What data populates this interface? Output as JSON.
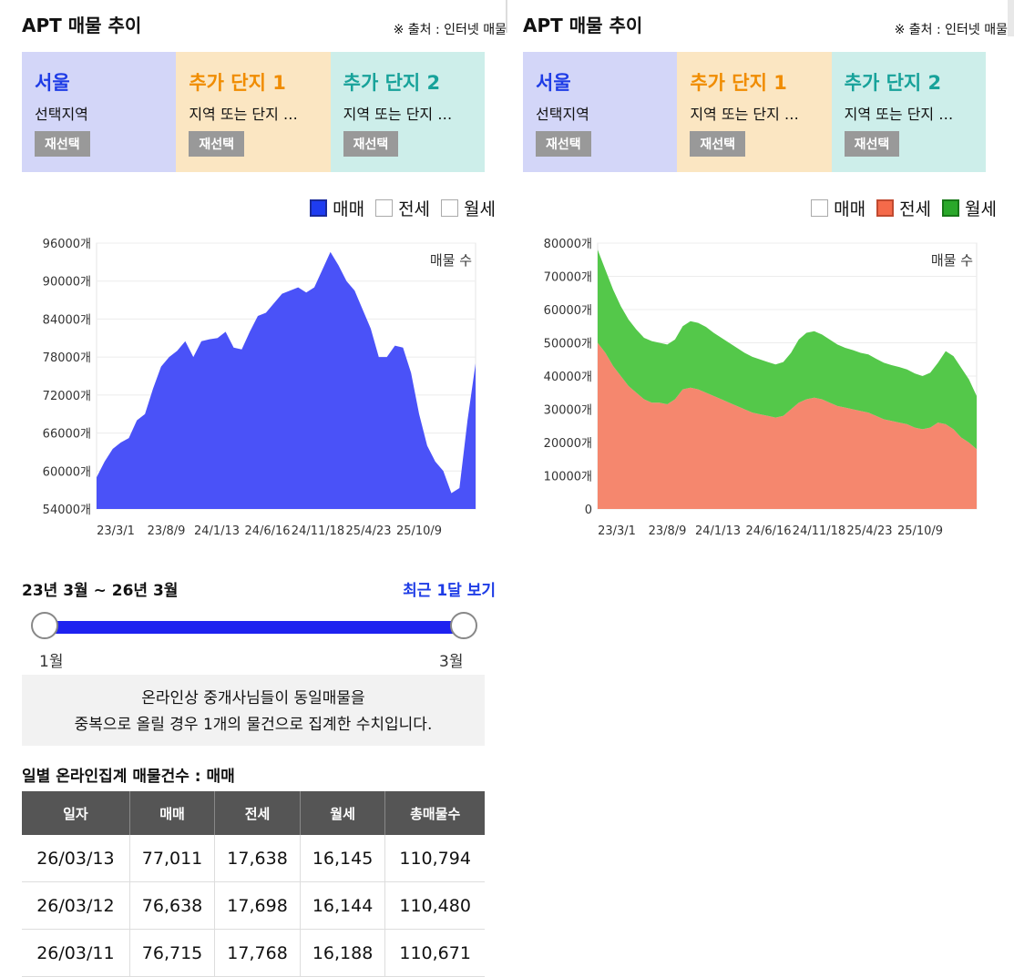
{
  "left": {
    "title": "APT 매물 추이",
    "source": "※ 출처 : 인터넷 매물",
    "regions": [
      {
        "name": "서울",
        "sub": "선택지역",
        "button": "재선택"
      },
      {
        "name": "추가 단지 1",
        "sub": "지역 또는 단지 …",
        "button": "재선택"
      },
      {
        "name": "추가 단지 2",
        "sub": "지역 또는 단지 …",
        "button": "재선택"
      }
    ],
    "legend": [
      {
        "label": "매매",
        "checked": true,
        "color": "#1e3cf0"
      },
      {
        "label": "전세",
        "checked": false,
        "color": "#ffffff"
      },
      {
        "label": "월세",
        "checked": false,
        "color": "#ffffff"
      }
    ]
  },
  "right": {
    "title": "APT 매물 추이",
    "source": "※ 출처 : 인터넷 매물",
    "regions": [
      {
        "name": "서울",
        "sub": "선택지역",
        "button": "재선택"
      },
      {
        "name": "추가 단지 1",
        "sub": "지역 또는 단지 …",
        "button": "재선택"
      },
      {
        "name": "추가 단지 2",
        "sub": "지역 또는 단지 …",
        "button": "재선택"
      }
    ],
    "legend": [
      {
        "label": "매매",
        "checked": false,
        "color": "#ffffff"
      },
      {
        "label": "전세",
        "checked": true,
        "color": "#f56a4a"
      },
      {
        "label": "월세",
        "checked": true,
        "color": "#2aa82a"
      }
    ]
  },
  "range": {
    "label": "23년 3월 ~ 26년 3월",
    "recent_link": "최근 1달 보기",
    "start_label": "1월",
    "end_label": "3월"
  },
  "note": {
    "line1": "온라인상 중개사님들이 동일매물을",
    "line2": "중복으로 올릴 경우 1개의 물건으로 집계한 수치입니다."
  },
  "table": {
    "title": "일별 온라인집계 매물건수 : 매매",
    "headers": [
      "일자",
      "매매",
      "전세",
      "월세",
      "총매물수"
    ],
    "rows": [
      [
        "26/03/13",
        "77,011",
        "17,638",
        "16,145",
        "110,794"
      ],
      [
        "26/03/12",
        "76,638",
        "17,698",
        "16,144",
        "110,480"
      ],
      [
        "26/03/11",
        "76,715",
        "17,768",
        "16,188",
        "110,671"
      ]
    ]
  },
  "chart_data": [
    {
      "type": "area",
      "title": "매물 수",
      "ylim": [
        54000,
        96000
      ],
      "ytick_values": [
        54000,
        60000,
        66000,
        72000,
        78000,
        84000,
        90000,
        96000
      ],
      "ytick_labels": [
        "54000개",
        "60000개",
        "66000개",
        "72000개",
        "78000개",
        "84000개",
        "90000개",
        "96000개"
      ],
      "xtick_labels": [
        "23/3/1",
        "23/8/9",
        "24/1/13",
        "24/6/16",
        "24/11/18",
        "25/4/23",
        "25/10/9"
      ],
      "grid": true,
      "series": [
        {
          "name": "매매",
          "color": "#4a52f8",
          "values": [
            59000,
            61500,
            63500,
            64500,
            65200,
            68000,
            69000,
            73000,
            76500,
            78000,
            79000,
            80500,
            78000,
            80500,
            80800,
            81000,
            82000,
            79500,
            79200,
            82000,
            84500,
            85000,
            86500,
            88000,
            88500,
            89000,
            88200,
            89000,
            91800,
            94600,
            92500,
            90000,
            88500,
            85500,
            82500,
            78000,
            78000,
            79800,
            79500,
            75500,
            69000,
            64000,
            61500,
            60000,
            56500,
            57300,
            68000,
            77000
          ]
        }
      ]
    },
    {
      "type": "area",
      "stacked": true,
      "title": "매물 수",
      "ylim": [
        0,
        80000
      ],
      "ytick_values": [
        0,
        10000,
        20000,
        30000,
        40000,
        50000,
        60000,
        70000,
        80000
      ],
      "ytick_labels": [
        "0",
        "10000개",
        "20000개",
        "30000개",
        "40000개",
        "50000개",
        "60000개",
        "70000개",
        "80000개"
      ],
      "xtick_labels": [
        "23/3/1",
        "23/8/9",
        "24/1/13",
        "24/6/16",
        "24/11/18",
        "25/4/23",
        "25/10/9"
      ],
      "grid": true,
      "series": [
        {
          "name": "전세",
          "color": "#f5876e",
          "values": [
            50000,
            47000,
            43000,
            40000,
            37000,
            35000,
            33000,
            32000,
            32000,
            31500,
            33000,
            36000,
            36500,
            36000,
            35000,
            34000,
            33000,
            32000,
            31000,
            30000,
            29000,
            28500,
            28000,
            27500,
            28000,
            30000,
            32000,
            33000,
            33500,
            33000,
            32000,
            31000,
            30500,
            30000,
            29500,
            29000,
            28000,
            27000,
            26500,
            26000,
            25500,
            24500,
            24000,
            24500,
            26000,
            25500,
            24000,
            21500,
            20000,
            18000
          ]
        },
        {
          "name": "월세",
          "color": "#54c84a",
          "values": [
            28000,
            25000,
            23000,
            21000,
            20000,
            19000,
            18500,
            18500,
            18000,
            18000,
            18000,
            19000,
            20000,
            20000,
            19800,
            19000,
            18500,
            18000,
            17500,
            17000,
            16800,
            16500,
            16200,
            16000,
            16200,
            17000,
            19000,
            20000,
            20000,
            19500,
            19000,
            18500,
            18000,
            17800,
            17500,
            17500,
            17200,
            17000,
            16800,
            16700,
            16500,
            16300,
            16000,
            16500,
            18000,
            22000,
            22000,
            21000,
            19000,
            16000
          ]
        }
      ]
    }
  ]
}
